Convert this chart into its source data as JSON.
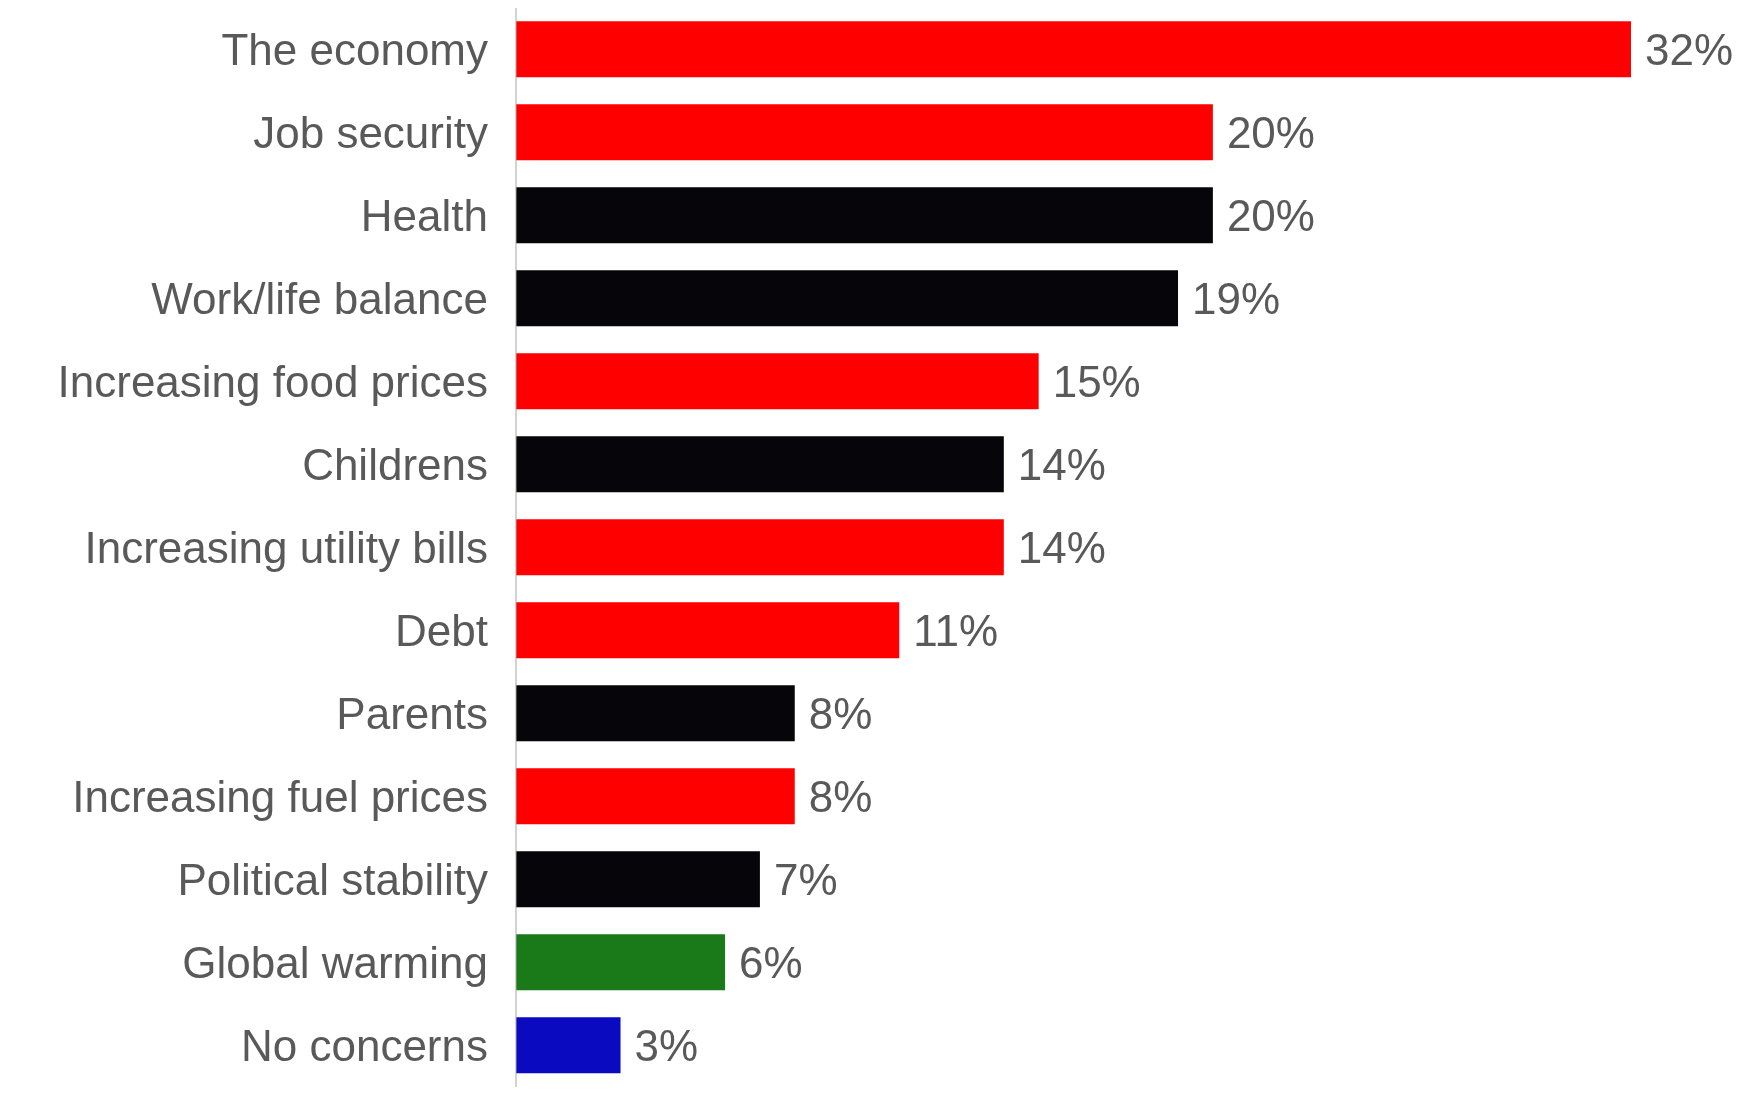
{
  "chart_data": {
    "type": "bar",
    "orientation": "horizontal",
    "categories": [
      "The economy",
      "Job security",
      "Health",
      "Work/life balance",
      "Increasing food prices",
      "Childrens",
      "Increasing utility bills",
      "Debt",
      "Parents",
      "Increasing fuel prices",
      "Political stability",
      "Global warming",
      "No concerns"
    ],
    "values": [
      32,
      20,
      20,
      19,
      15,
      14,
      14,
      11,
      8,
      8,
      7,
      6,
      3
    ],
    "colors": [
      "#ff0000",
      "#ff0000",
      "#05050a",
      "#05050a",
      "#ff0000",
      "#05050a",
      "#ff0000",
      "#ff0000",
      "#05050a",
      "#ff0000",
      "#05050a",
      "#1a7a1a",
      "#0a0ac0"
    ],
    "value_labels": [
      "32%",
      "20%",
      "20%",
      "19%",
      "15%",
      "14%",
      "14%",
      "11%",
      "8%",
      "8%",
      "7%",
      "6%",
      "3%"
    ],
    "grid": false,
    "legend": false
  }
}
